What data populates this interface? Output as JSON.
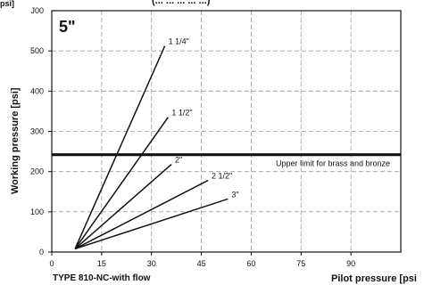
{
  "chart_data": {
    "type": "line",
    "unit_top_left": "psi]",
    "clipped_top_text": "(... ... ... ... ...) ",
    "title": "5\"",
    "ylabel": "Working pressure [psi]",
    "xlabel": "Pilot pressure [psi",
    "footer": "TYPE 810-NC-with flow",
    "xlim": [
      0,
      105
    ],
    "ylim": [
      0,
      600
    ],
    "x_ticks": [
      "0",
      "15",
      "30",
      "45",
      "60",
      "75",
      "90"
    ],
    "x_tick_values": [
      0,
      15,
      30,
      45,
      60,
      75,
      90
    ],
    "y_ticks": [
      "0",
      "100",
      "200",
      "300",
      "400",
      "500"
    ],
    "y_tick_values": [
      0,
      100,
      200,
      300,
      400,
      500
    ],
    "y_top_tick_label": "J00",
    "grid": true,
    "reference_line": {
      "y": 242,
      "label": "Upper limit for brass and bronze"
    },
    "series": [
      {
        "name": "1 1/4\"",
        "x": [
          7,
          34
        ],
        "y": [
          8,
          512
        ]
      },
      {
        "name": "1 1/2\"",
        "x": [
          7,
          35
        ],
        "y": [
          8,
          335
        ]
      },
      {
        "name": "2\"",
        "x": [
          7,
          36
        ],
        "y": [
          8,
          218
        ]
      },
      {
        "name": "2 1/2\"",
        "x": [
          7,
          47
        ],
        "y": [
          8,
          178
        ]
      },
      {
        "name": "3\"",
        "x": [
          7,
          53
        ],
        "y": [
          8,
          132
        ]
      }
    ]
  }
}
